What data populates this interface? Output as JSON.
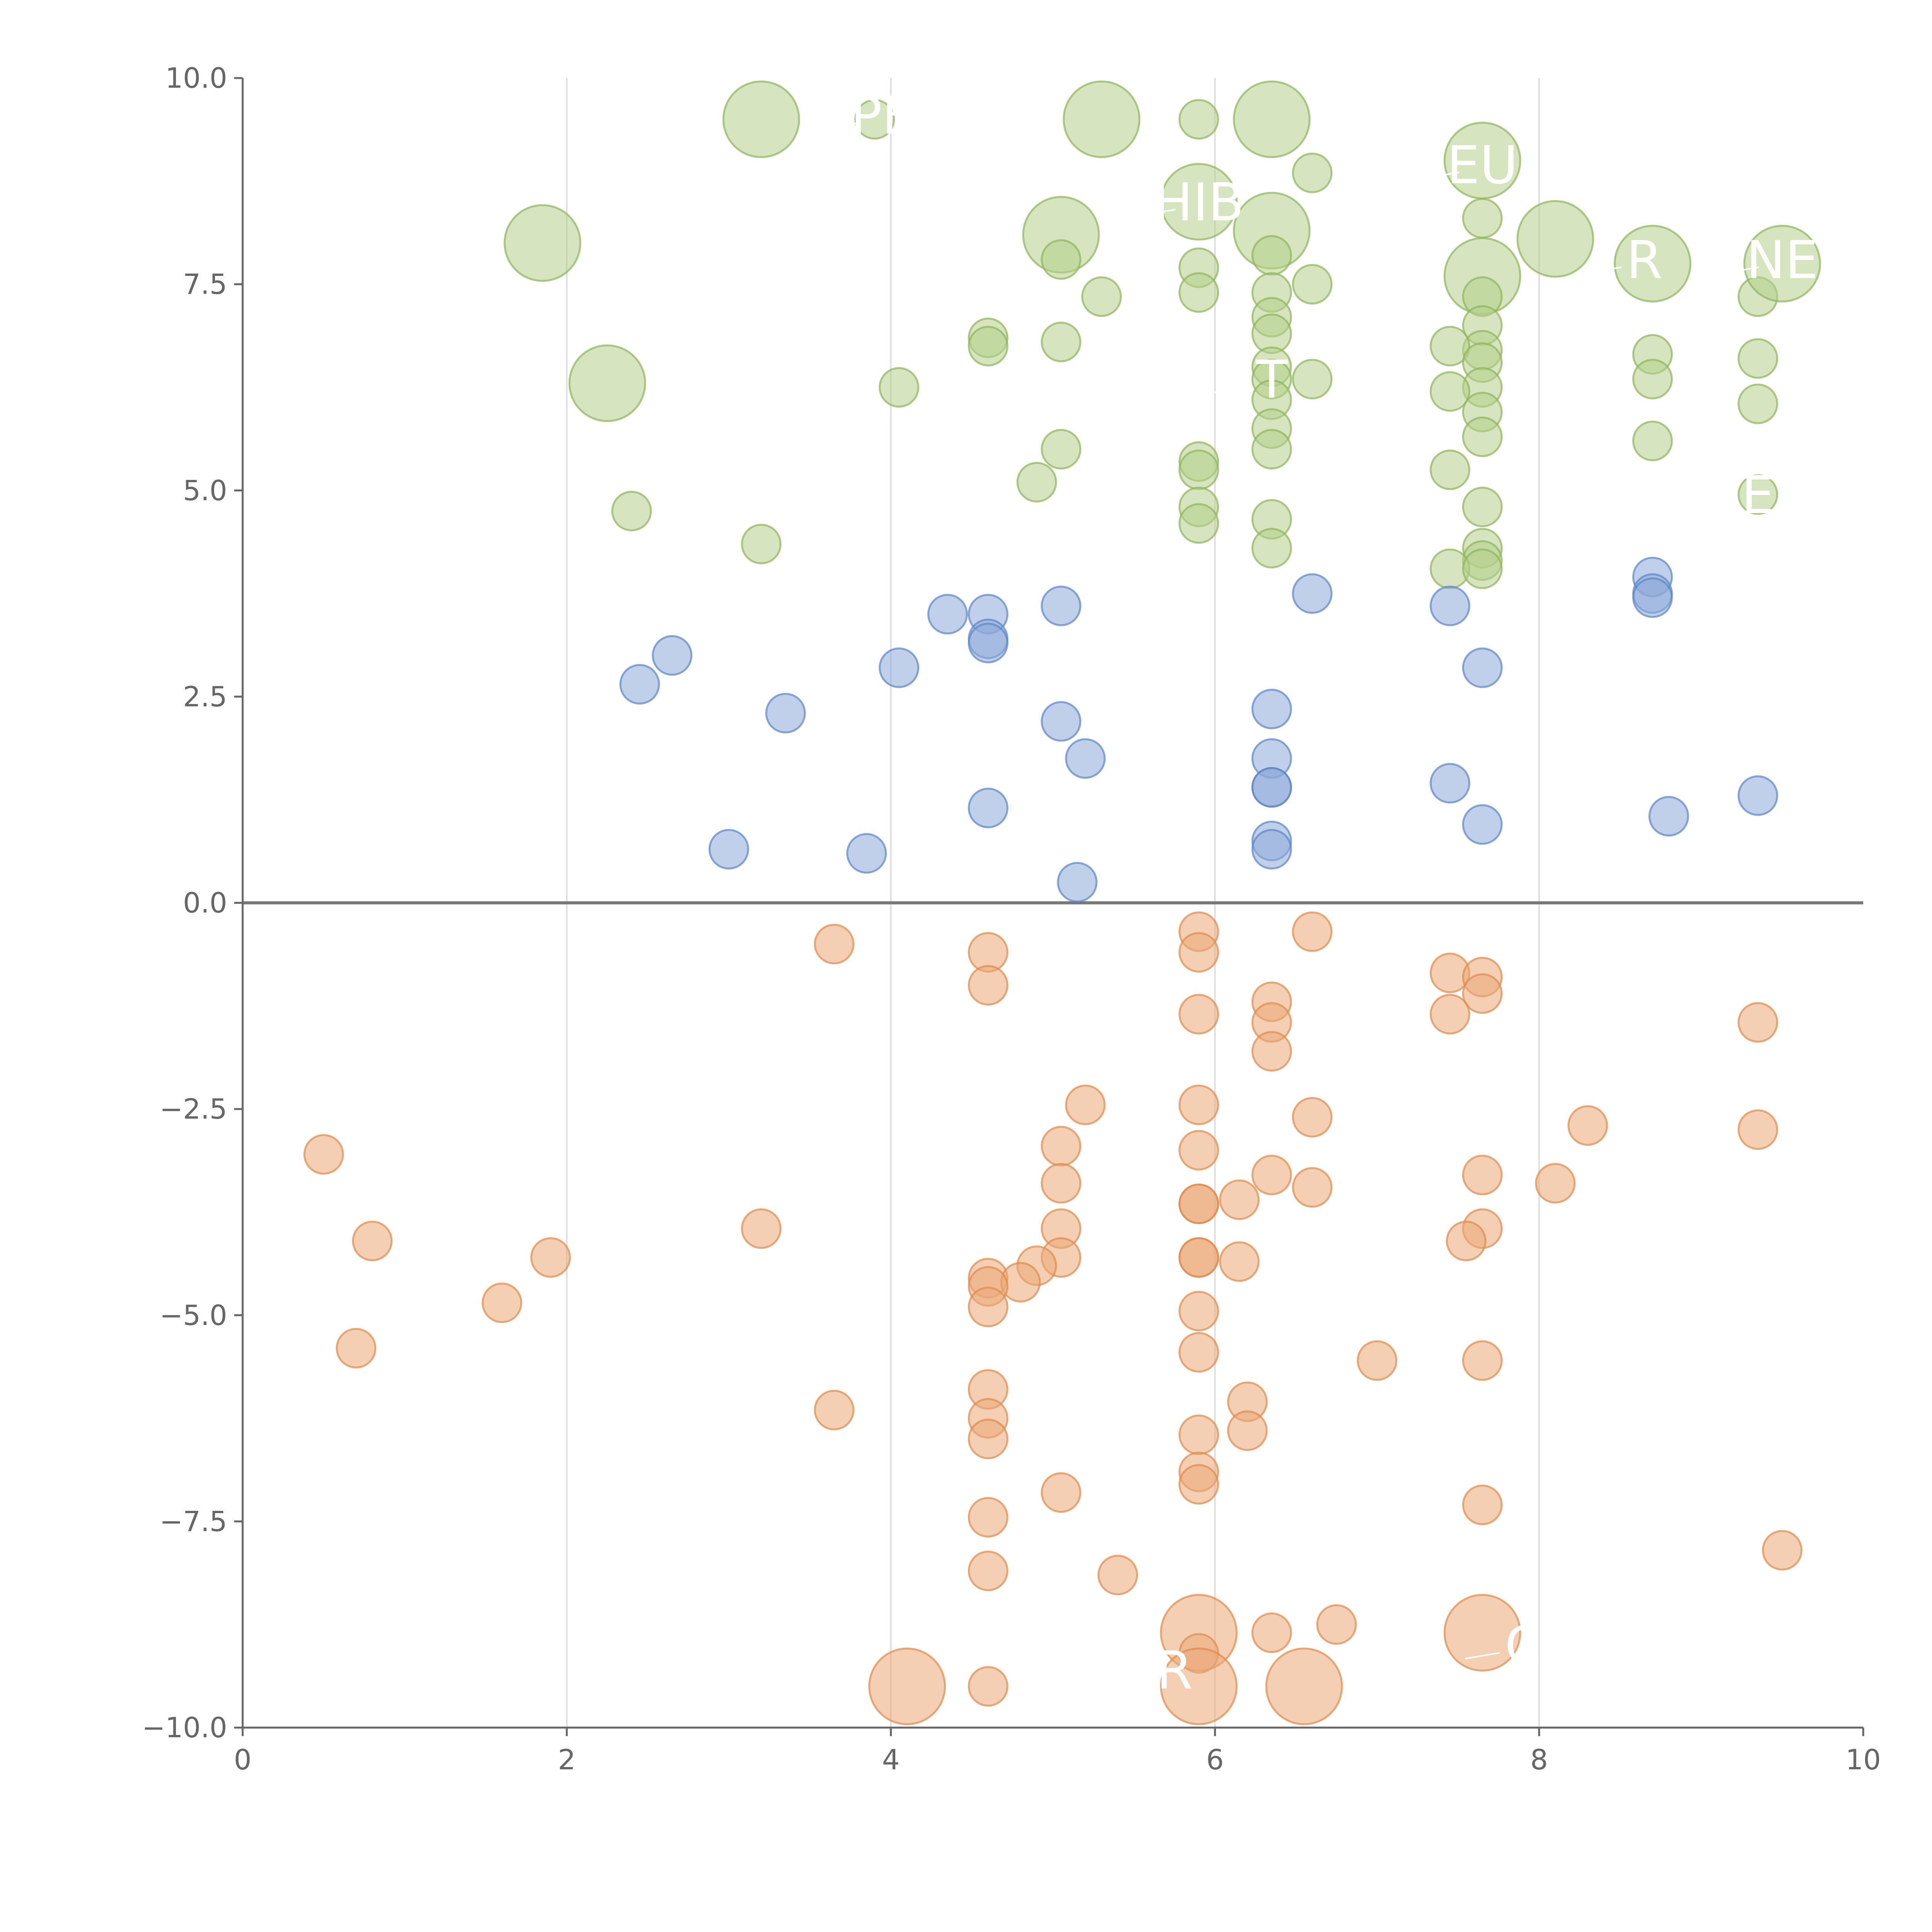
{
  "chart_data": {
    "type": "scatter",
    "xlim": [
      0,
      10
    ],
    "ylim": [
      -10,
      10
    ],
    "x_ticks": [
      "0",
      "2",
      "4",
      "6",
      "8",
      "10"
    ],
    "y_ticks": [
      "−10.0",
      "−7.5",
      "−5.0",
      "−2.5",
      "0.0",
      "2.5",
      "5.0",
      "7.5",
      "10.0"
    ],
    "grid": "vertical",
    "zero_line": true,
    "colors": {
      "green_fill": "#b5cf8a",
      "green_stroke": "#8db45a",
      "blue_fill": "#8eaad8",
      "blue_stroke": "#5a84c4",
      "orange_fill": "#eba776",
      "orange_stroke": "#dd8a4c"
    },
    "series": [
      {
        "color": "green",
        "points": [
          {
            "x": 3.2,
            "y": 9.5,
            "r": "large"
          },
          {
            "x": 3.9,
            "y": 9.5,
            "r": "small"
          },
          {
            "x": 5.3,
            "y": 9.5,
            "r": "large"
          },
          {
            "x": 5.9,
            "y": 9.5,
            "r": "small"
          },
          {
            "x": 6.35,
            "y": 9.5,
            "r": "large"
          },
          {
            "x": 6.6,
            "y": 8.85,
            "r": "small"
          },
          {
            "x": 5.9,
            "y": 8.5,
            "r": "large"
          },
          {
            "x": 7.65,
            "y": 9.0,
            "r": "large"
          },
          {
            "x": 7.65,
            "y": 8.3,
            "r": "small"
          },
          {
            "x": 8.1,
            "y": 8.05,
            "r": "large"
          },
          {
            "x": 1.85,
            "y": 8.0,
            "r": "large"
          },
          {
            "x": 5.05,
            "y": 8.1,
            "r": "large"
          },
          {
            "x": 5.05,
            "y": 7.8,
            "r": "small"
          },
          {
            "x": 6.35,
            "y": 8.15,
            "r": "large"
          },
          {
            "x": 6.35,
            "y": 7.85,
            "r": "small"
          },
          {
            "x": 5.9,
            "y": 7.7,
            "r": "small"
          },
          {
            "x": 5.9,
            "y": 7.4,
            "r": "small"
          },
          {
            "x": 6.35,
            "y": 7.4,
            "r": "small"
          },
          {
            "x": 6.6,
            "y": 7.5,
            "r": "small"
          },
          {
            "x": 5.3,
            "y": 7.35,
            "r": "small"
          },
          {
            "x": 7.65,
            "y": 7.6,
            "r": "large"
          },
          {
            "x": 7.65,
            "y": 7.35,
            "r": "small"
          },
          {
            "x": 8.7,
            "y": 7.75,
            "r": "large"
          },
          {
            "x": 9.35,
            "y": 7.35,
            "r": "small"
          },
          {
            "x": 9.5,
            "y": 7.75,
            "r": "large"
          },
          {
            "x": 6.35,
            "y": 7.1,
            "r": "small"
          },
          {
            "x": 6.35,
            "y": 6.9,
            "r": "small"
          },
          {
            "x": 7.65,
            "y": 7.0,
            "r": "small"
          },
          {
            "x": 7.65,
            "y": 6.7,
            "r": "small"
          },
          {
            "x": 7.45,
            "y": 6.75,
            "r": "small"
          },
          {
            "x": 4.6,
            "y": 6.85,
            "r": "small"
          },
          {
            "x": 4.6,
            "y": 6.75,
            "r": "small"
          },
          {
            "x": 5.05,
            "y": 6.8,
            "r": "small"
          },
          {
            "x": 8.7,
            "y": 6.65,
            "r": "small"
          },
          {
            "x": 9.35,
            "y": 6.6,
            "r": "small"
          },
          {
            "x": 6.35,
            "y": 6.5,
            "r": "small"
          },
          {
            "x": 6.35,
            "y": 6.35,
            "r": "small"
          },
          {
            "x": 6.6,
            "y": 6.35,
            "r": "small"
          },
          {
            "x": 7.65,
            "y": 6.55,
            "r": "small"
          },
          {
            "x": 7.65,
            "y": 6.25,
            "r": "small"
          },
          {
            "x": 8.7,
            "y": 6.35,
            "r": "small"
          },
          {
            "x": 2.25,
            "y": 6.3,
            "r": "large"
          },
          {
            "x": 4.05,
            "y": 6.25,
            "r": "small"
          },
          {
            "x": 7.45,
            "y": 6.2,
            "r": "small"
          },
          {
            "x": 6.35,
            "y": 6.1,
            "r": "small"
          },
          {
            "x": 9.35,
            "y": 6.05,
            "r": "small"
          },
          {
            "x": 7.65,
            "y": 5.95,
            "r": "small"
          },
          {
            "x": 6.35,
            "y": 5.75,
            "r": "small"
          },
          {
            "x": 7.65,
            "y": 5.65,
            "r": "small"
          },
          {
            "x": 8.7,
            "y": 5.6,
            "r": "small"
          },
          {
            "x": 5.05,
            "y": 5.5,
            "r": "small"
          },
          {
            "x": 6.35,
            "y": 5.5,
            "r": "small"
          },
          {
            "x": 5.9,
            "y": 5.35,
            "r": "small"
          },
          {
            "x": 5.9,
            "y": 5.25,
            "r": "small"
          },
          {
            "x": 7.45,
            "y": 5.25,
            "r": "small"
          },
          {
            "x": 4.9,
            "y": 5.1,
            "r": "small"
          },
          {
            "x": 9.35,
            "y": 4.95,
            "r": "small"
          },
          {
            "x": 2.4,
            "y": 4.75,
            "r": "small"
          },
          {
            "x": 5.9,
            "y": 4.8,
            "r": "small"
          },
          {
            "x": 7.65,
            "y": 4.8,
            "r": "small"
          },
          {
            "x": 5.9,
            "y": 4.6,
            "r": "small"
          },
          {
            "x": 6.35,
            "y": 4.65,
            "r": "small"
          },
          {
            "x": 3.2,
            "y": 4.35,
            "r": "small"
          },
          {
            "x": 6.35,
            "y": 4.3,
            "r": "small"
          },
          {
            "x": 7.65,
            "y": 4.3,
            "r": "small"
          },
          {
            "x": 7.65,
            "y": 4.15,
            "r": "small"
          },
          {
            "x": 7.45,
            "y": 4.05,
            "r": "small"
          },
          {
            "x": 7.65,
            "y": 4.05,
            "r": "small"
          }
        ]
      },
      {
        "color": "blue",
        "points": [
          {
            "x": 6.6,
            "y": 3.75
          },
          {
            "x": 8.7,
            "y": 3.95
          },
          {
            "x": 8.7,
            "y": 3.75
          },
          {
            "x": 8.7,
            "y": 3.7
          },
          {
            "x": 7.45,
            "y": 3.6
          },
          {
            "x": 5.05,
            "y": 3.6
          },
          {
            "x": 4.35,
            "y": 3.5
          },
          {
            "x": 4.6,
            "y": 3.5
          },
          {
            "x": 4.6,
            "y": 3.2
          },
          {
            "x": 4.6,
            "y": 3.15
          },
          {
            "x": 2.65,
            "y": 3.0
          },
          {
            "x": 4.05,
            "y": 2.85
          },
          {
            "x": 7.65,
            "y": 2.85
          },
          {
            "x": 2.45,
            "y": 2.65
          },
          {
            "x": 6.35,
            "y": 2.35
          },
          {
            "x": 3.35,
            "y": 2.3
          },
          {
            "x": 5.05,
            "y": 2.2
          },
          {
            "x": 5.2,
            "y": 1.75
          },
          {
            "x": 6.35,
            "y": 1.75
          },
          {
            "x": 7.45,
            "y": 1.45
          },
          {
            "x": 6.35,
            "y": 1.4
          },
          {
            "x": 6.35,
            "y": 1.4
          },
          {
            "x": 9.35,
            "y": 1.3
          },
          {
            "x": 4.6,
            "y": 1.15
          },
          {
            "x": 8.8,
            "y": 1.05
          },
          {
            "x": 7.65,
            "y": 0.95
          },
          {
            "x": 6.35,
            "y": 0.75
          },
          {
            "x": 6.35,
            "y": 0.65
          },
          {
            "x": 3.0,
            "y": 0.65
          },
          {
            "x": 3.85,
            "y": 0.6
          },
          {
            "x": 5.15,
            "y": 0.25
          }
        ]
      },
      {
        "color": "orange",
        "points": [
          {
            "x": 5.9,
            "y": -0.35,
            "r": "small"
          },
          {
            "x": 6.6,
            "y": -0.35,
            "r": "small"
          },
          {
            "x": 3.65,
            "y": -0.5,
            "r": "small"
          },
          {
            "x": 5.9,
            "y": -0.6,
            "r": "small"
          },
          {
            "x": 4.6,
            "y": -0.6,
            "r": "small"
          },
          {
            "x": 7.45,
            "y": -0.85,
            "r": "small"
          },
          {
            "x": 7.65,
            "y": -0.9,
            "r": "small"
          },
          {
            "x": 4.6,
            "y": -1.0,
            "r": "small"
          },
          {
            "x": 7.65,
            "y": -1.1,
            "r": "small"
          },
          {
            "x": 6.35,
            "y": -1.2,
            "r": "small"
          },
          {
            "x": 5.9,
            "y": -1.35,
            "r": "small"
          },
          {
            "x": 7.45,
            "y": -1.35,
            "r": "small"
          },
          {
            "x": 6.35,
            "y": -1.45,
            "r": "small"
          },
          {
            "x": 9.35,
            "y": -1.45,
            "r": "small"
          },
          {
            "x": 6.35,
            "y": -1.8,
            "r": "small"
          },
          {
            "x": 5.2,
            "y": -2.45,
            "r": "small"
          },
          {
            "x": 5.9,
            "y": -2.45,
            "r": "small"
          },
          {
            "x": 6.6,
            "y": -2.6,
            "r": "small"
          },
          {
            "x": 8.3,
            "y": -2.7,
            "r": "small"
          },
          {
            "x": 9.35,
            "y": -2.75,
            "r": "small"
          },
          {
            "x": 5.05,
            "y": -2.95,
            "r": "small"
          },
          {
            "x": 5.9,
            "y": -3.0,
            "r": "small"
          },
          {
            "x": 0.5,
            "y": -3.05,
            "r": "small"
          },
          {
            "x": 7.65,
            "y": -3.3,
            "r": "small"
          },
          {
            "x": 6.35,
            "y": -3.3,
            "r": "small"
          },
          {
            "x": 5.05,
            "y": -3.4,
            "r": "small"
          },
          {
            "x": 8.1,
            "y": -3.4,
            "r": "small"
          },
          {
            "x": 6.6,
            "y": -3.45,
            "r": "small"
          },
          {
            "x": 6.15,
            "y": -3.6,
            "r": "small"
          },
          {
            "x": 5.9,
            "y": -3.65,
            "r": "small"
          },
          {
            "x": 5.9,
            "y": -3.65,
            "r": "small"
          },
          {
            "x": 3.2,
            "y": -3.95,
            "r": "small"
          },
          {
            "x": 5.05,
            "y": -3.95,
            "r": "small"
          },
          {
            "x": 7.65,
            "y": -3.95,
            "r": "small"
          },
          {
            "x": 0.8,
            "y": -4.1,
            "r": "small"
          },
          {
            "x": 7.55,
            "y": -4.1,
            "r": "small"
          },
          {
            "x": 1.9,
            "y": -4.3,
            "r": "small"
          },
          {
            "x": 5.9,
            "y": -4.3,
            "r": "small"
          },
          {
            "x": 5.9,
            "y": -4.3,
            "r": "small"
          },
          {
            "x": 5.05,
            "y": -4.3,
            "r": "small"
          },
          {
            "x": 6.15,
            "y": -4.35,
            "r": "small"
          },
          {
            "x": 4.9,
            "y": -4.4,
            "r": "small"
          },
          {
            "x": 4.6,
            "y": -4.55,
            "r": "small"
          },
          {
            "x": 4.8,
            "y": -4.6,
            "r": "small"
          },
          {
            "x": 4.6,
            "y": -4.65,
            "r": "small"
          },
          {
            "x": 1.6,
            "y": -4.85,
            "r": "small"
          },
          {
            "x": 4.6,
            "y": -4.9,
            "r": "small"
          },
          {
            "x": 5.9,
            "y": -4.95,
            "r": "small"
          },
          {
            "x": 0.7,
            "y": -5.4,
            "r": "small"
          },
          {
            "x": 5.9,
            "y": -5.45,
            "r": "small"
          },
          {
            "x": 7.0,
            "y": -5.55,
            "r": "small"
          },
          {
            "x": 7.65,
            "y": -5.55,
            "r": "small"
          },
          {
            "x": 4.6,
            "y": -5.9,
            "r": "small"
          },
          {
            "x": 6.2,
            "y": -6.05,
            "r": "small"
          },
          {
            "x": 3.65,
            "y": -6.15,
            "r": "small"
          },
          {
            "x": 4.6,
            "y": -6.25,
            "r": "small"
          },
          {
            "x": 6.2,
            "y": -6.4,
            "r": "small"
          },
          {
            "x": 5.9,
            "y": -6.45,
            "r": "small"
          },
          {
            "x": 4.6,
            "y": -6.5,
            "r": "small"
          },
          {
            "x": 5.9,
            "y": -6.9,
            "r": "small"
          },
          {
            "x": 5.9,
            "y": -7.05,
            "r": "small"
          },
          {
            "x": 5.05,
            "y": -7.15,
            "r": "small"
          },
          {
            "x": 7.65,
            "y": -7.3,
            "r": "small"
          },
          {
            "x": 4.6,
            "y": -7.45,
            "r": "small"
          },
          {
            "x": 9.5,
            "y": -7.85,
            "r": "small"
          },
          {
            "x": 4.6,
            "y": -8.1,
            "r": "small"
          },
          {
            "x": 5.4,
            "y": -8.15,
            "r": "small"
          },
          {
            "x": 6.75,
            "y": -8.75,
            "r": "small"
          },
          {
            "x": 6.35,
            "y": -8.85,
            "r": "small"
          },
          {
            "x": 5.9,
            "y": -8.85,
            "r": "large"
          },
          {
            "x": 7.65,
            "y": -8.85,
            "r": "large"
          },
          {
            "x": 5.9,
            "y": -9.1,
            "r": "small"
          },
          {
            "x": 5.9,
            "y": -9.5,
            "r": "large"
          },
          {
            "x": 4.1,
            "y": -9.5,
            "r": "large"
          },
          {
            "x": 4.6,
            "y": -9.5,
            "r": "small"
          },
          {
            "x": 6.55,
            "y": -9.5,
            "r": "large"
          }
        ]
      }
    ],
    "annotations": [
      {
        "text": "PE",
        "x": 3.95,
        "y": 9.55
      },
      {
        "text": "HIB",
        "x": 5.9,
        "y": 8.5
      },
      {
        "text": "EU",
        "x": 7.65,
        "y": 8.95
      },
      {
        "text": "R",
        "x": 8.65,
        "y": 7.8
      },
      {
        "text": "NE",
        "x": 9.5,
        "y": 7.8
      },
      {
        "text": "T",
        "x": 6.35,
        "y": 6.35
      },
      {
        "text": "E",
        "x": 9.35,
        "y": 4.95
      },
      {
        "text": "C",
        "x": 7.9,
        "y": -9.0
      },
      {
        "text": "R",
        "x": 5.75,
        "y": -9.3
      }
    ]
  }
}
